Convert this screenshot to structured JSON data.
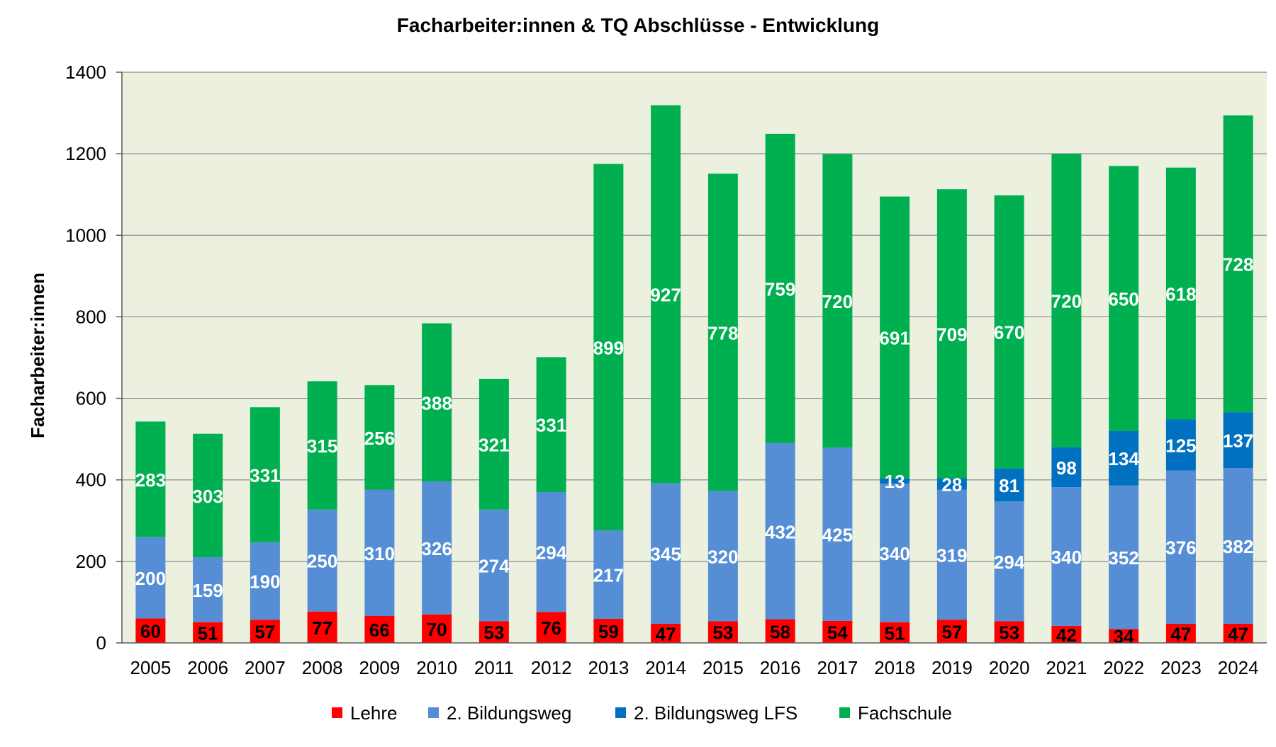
{
  "chart_data": {
    "type": "bar",
    "stacked": true,
    "title": "Facharbeiter:innen & TQ Abschlüsse - Entwicklung",
    "xlabel": "",
    "ylabel": "Facharbeiter:innen",
    "ylim": [
      0,
      1400
    ],
    "yticks": [
      0,
      200,
      400,
      600,
      800,
      1000,
      1200,
      1400
    ],
    "grid": true,
    "legend_position": "bottom",
    "categories": [
      "2005",
      "2006",
      "2007",
      "2008",
      "2009",
      "2010",
      "2011",
      "2012",
      "2013",
      "2014",
      "2015",
      "2016",
      "2017",
      "2018",
      "2019",
      "2020",
      "2021",
      "2022",
      "2023",
      "2024"
    ],
    "series": [
      {
        "name": "Lehre",
        "color": "#ff0000",
        "label_color": "#000000",
        "values": [
          60,
          51,
          57,
          77,
          66,
          70,
          53,
          76,
          59,
          47,
          53,
          58,
          54,
          51,
          57,
          53,
          42,
          34,
          47,
          47
        ]
      },
      {
        "name": "2. Bildungsweg",
        "color": "#558ed5",
        "label_color": "#ffffff",
        "values": [
          200,
          159,
          190,
          250,
          310,
          326,
          274,
          294,
          217,
          345,
          320,
          432,
          425,
          340,
          319,
          294,
          340,
          352,
          376,
          382
        ]
      },
      {
        "name": "2. Bildungsweg LFS",
        "color": "#0070c0",
        "label_color": "#ffffff",
        "values": [
          null,
          null,
          null,
          null,
          null,
          null,
          null,
          null,
          null,
          null,
          null,
          null,
          null,
          13,
          28,
          81,
          98,
          134,
          125,
          137
        ]
      },
      {
        "name": "Fachschule",
        "color": "#00b050",
        "label_color": "#ffffff",
        "values": [
          283,
          303,
          331,
          315,
          256,
          388,
          321,
          331,
          899,
          927,
          778,
          759,
          720,
          691,
          709,
          670,
          720,
          650,
          618,
          728
        ]
      }
    ],
    "colors": {
      "plot_background": "#ebf1de",
      "gridline": "#8c8c8c",
      "axis": "#595959",
      "text": "#000000"
    }
  }
}
